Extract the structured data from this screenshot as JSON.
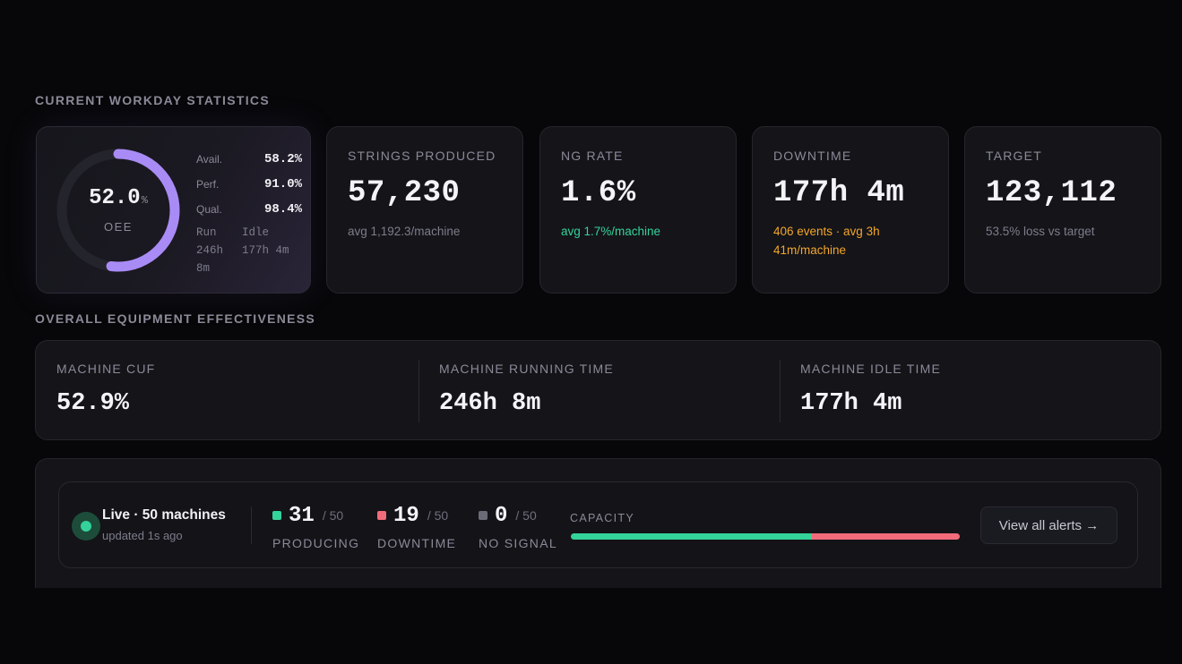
{
  "sections": {
    "workday_title": "CURRENT WORKDAY STATISTICS",
    "oee_title": "OVERALL EQUIPMENT EFFECTIVENESS"
  },
  "oee_card": {
    "value": "52.0",
    "unit": "%",
    "label": "OEE",
    "ring_fraction": 0.52,
    "metrics": [
      {
        "key": "Avail.",
        "value": "58.2%"
      },
      {
        "key": "Perf.",
        "value": "91.0%"
      },
      {
        "key": "Qual.",
        "value": "98.4%"
      }
    ],
    "run_label": "Run",
    "run_value_1": "246h",
    "run_value_2": "8m",
    "idle_label": "Idle",
    "idle_value": "177h 4m"
  },
  "stat_cards": [
    {
      "label": "STRINGS PRODUCED",
      "value": "57,230",
      "sub": "avg 1,192.3/machine"
    },
    {
      "label": "NG RATE",
      "value": "1.6%",
      "sub": "avg 1.7%/machine"
    },
    {
      "label": "DOWNTIME",
      "value": "177h 4m",
      "sub": "406 events · avg 3h 41m/machine"
    },
    {
      "label": "TARGET",
      "value": "123,112",
      "sub": "53.5% loss vs target"
    }
  ],
  "oee_wide": [
    {
      "label": "MACHINE CUF",
      "value": "52.9%"
    },
    {
      "label": "MACHINE RUNNING TIME",
      "value": "246h 8m"
    },
    {
      "label": "MACHINE IDLE TIME",
      "value": "177h 4m"
    }
  ],
  "live": {
    "title": "Live · 50 machines",
    "updated": "updated 1s ago",
    "statuses": [
      {
        "count": "31",
        "of": "/ 50",
        "label": "PRODUCING",
        "color": "#34d399"
      },
      {
        "count": "19",
        "of": "/ 50",
        "label": "DOWNTIME",
        "color": "#f26b7a"
      },
      {
        "count": "0",
        "of": "/ 50",
        "label": "NO SIGNAL",
        "color": "#6b6b78"
      }
    ],
    "capacity_label": "CAPACITY",
    "capacity_producing_fraction": 0.62,
    "capacity_downtime_fraction": 0.38,
    "alerts_button": "View all alerts →"
  },
  "colors": {
    "accent_purple": "#a98bf5",
    "green": "#34d399",
    "red": "#f26b7a",
    "orange": "#f4a62a"
  }
}
